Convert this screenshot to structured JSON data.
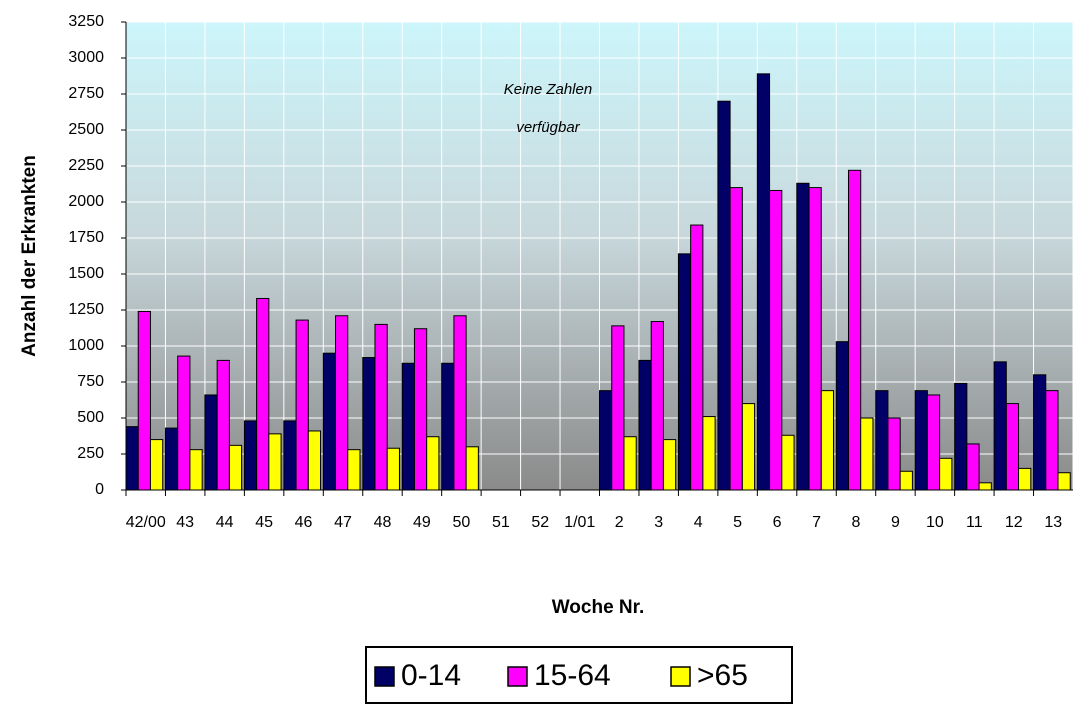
{
  "chart_data": {
    "type": "bar",
    "annotations": [
      "Keine Zahlen",
      "verfügbar"
    ],
    "x_label": "Woche Nr.",
    "y_label": "Anzahl der Erkrankten",
    "categories": [
      "42/00",
      "43",
      "44",
      "45",
      "46",
      "47",
      "48",
      "49",
      "50",
      "51",
      "52",
      "1/01",
      "2",
      "3",
      "4",
      "5",
      "6",
      "7",
      "8",
      "9",
      "10",
      "11",
      "12",
      "13"
    ],
    "series": [
      {
        "name": "0-14",
        "color": "#000066",
        "values": [
          440,
          430,
          660,
          480,
          480,
          950,
          920,
          880,
          880,
          null,
          null,
          null,
          690,
          900,
          1640,
          2700,
          2890,
          2130,
          1030,
          690,
          690,
          740,
          890,
          800
        ]
      },
      {
        "name": "15-64",
        "color": "#ff00ff",
        "values": [
          1240,
          930,
          900,
          1330,
          1180,
          1210,
          1150,
          1120,
          1210,
          null,
          null,
          null,
          1140,
          1170,
          1840,
          2100,
          2080,
          2100,
          2220,
          500,
          660,
          320,
          600,
          690
        ]
      },
      {
        "name": ">65",
        "color": "#ffff00",
        "values": [
          350,
          280,
          310,
          390,
          410,
          280,
          290,
          370,
          300,
          null,
          null,
          null,
          370,
          350,
          510,
          600,
          380,
          690,
          500,
          130,
          220,
          50,
          150,
          120
        ]
      }
    ],
    "ylim": [
      0,
      3250
    ],
    "yticks": [
      0,
      250,
      500,
      750,
      1000,
      1250,
      1500,
      1750,
      2000,
      2250,
      2500,
      2750,
      3000,
      3250
    ],
    "grid": true
  }
}
